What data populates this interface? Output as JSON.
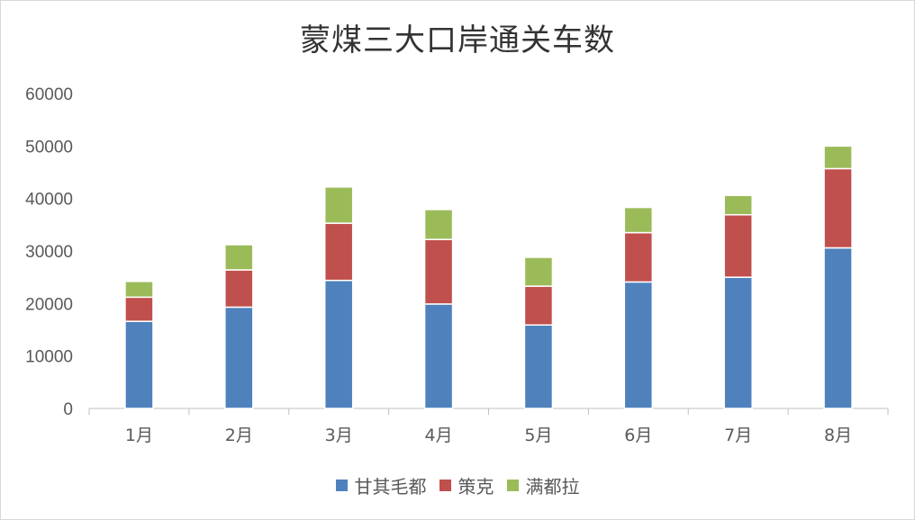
{
  "chart_data": {
    "type": "bar",
    "stacked": true,
    "title": "蒙煤三大口岸通关车数",
    "xlabel": "",
    "ylabel": "",
    "categories": [
      "1月",
      "2月",
      "3月",
      "4月",
      "5月",
      "6月",
      "7月",
      "8月"
    ],
    "series": [
      {
        "name": "甘其毛都",
        "color": "#4f81bd",
        "values": [
          16600,
          19300,
          24400,
          19900,
          15900,
          24100,
          25000,
          30600
        ]
      },
      {
        "name": "策克",
        "color": "#c0504d",
        "values": [
          4600,
          7100,
          10900,
          12300,
          7400,
          9400,
          11900,
          15100
        ]
      },
      {
        "name": "满都拉",
        "color": "#9bbb59",
        "values": [
          3000,
          4800,
          6900,
          5700,
          5500,
          4800,
          3700,
          4300
        ]
      }
    ],
    "ylim": [
      0,
      60000
    ],
    "yticks": [
      "0",
      "10000",
      "20000",
      "30000",
      "40000",
      "50000",
      "60000"
    ],
    "grid": false,
    "legend": "bottom"
  }
}
